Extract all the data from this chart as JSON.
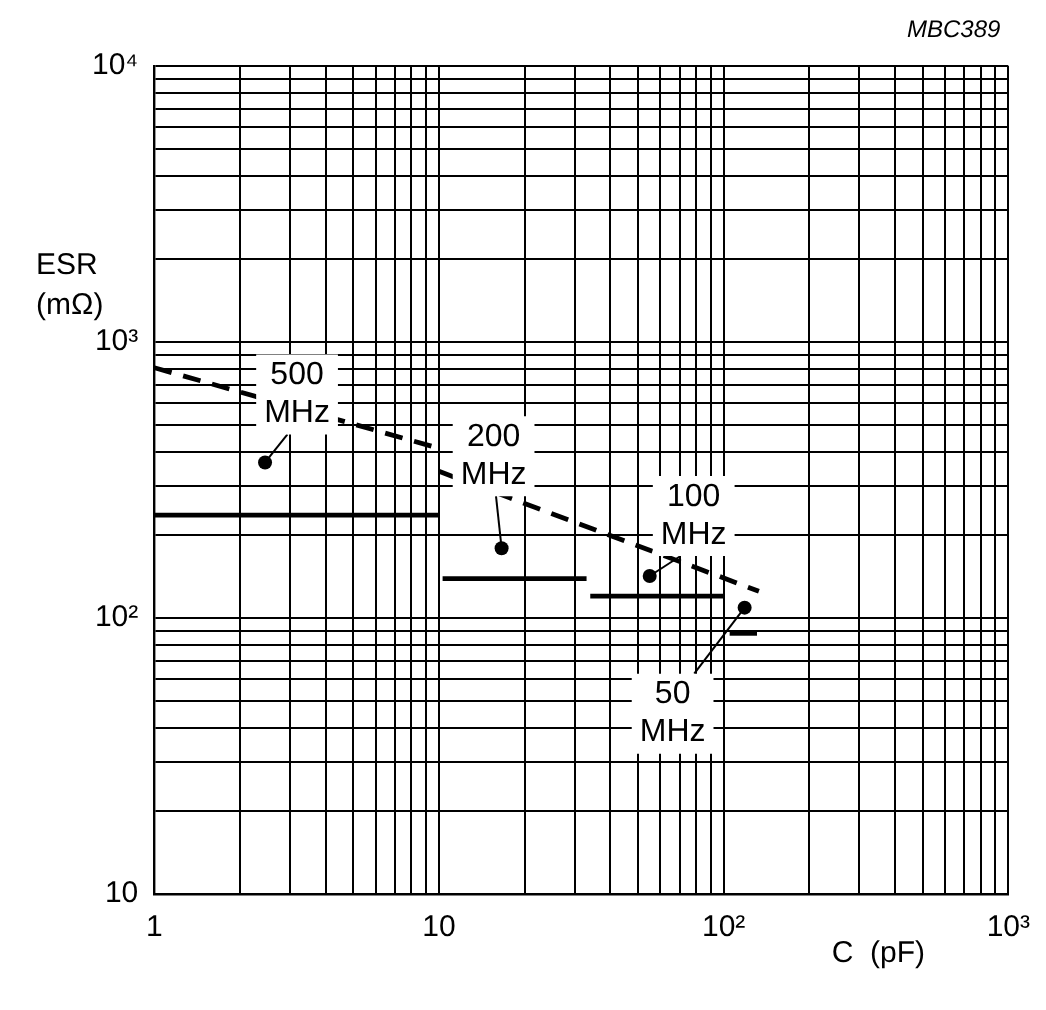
{
  "chart_data": {
    "type": "line",
    "xlabel": "C  (pF)",
    "ylabel": "ESR\n(mΩ)",
    "log": "xy",
    "grid": true,
    "marker": "none",
    "xlim": [
      1,
      1000
    ],
    "ylim": [
      10,
      10000
    ],
    "xticks": [
      {
        "value": 1,
        "label": "1"
      },
      {
        "value": 2,
        "label": null
      },
      {
        "value": 3,
        "label": null
      },
      {
        "value": 4,
        "label": null
      },
      {
        "value": 5,
        "label": null
      },
      {
        "value": 6,
        "label": null
      },
      {
        "value": 7,
        "label": null
      },
      {
        "value": 8,
        "label": null
      },
      {
        "value": 9,
        "label": null
      },
      {
        "value": 10,
        "label": "10"
      },
      {
        "value": 20,
        "label": null
      },
      {
        "value": 30,
        "label": null
      },
      {
        "value": 40,
        "label": null
      },
      {
        "value": 50,
        "label": null
      },
      {
        "value": 60,
        "label": null
      },
      {
        "value": 70,
        "label": null
      },
      {
        "value": 80,
        "label": null
      },
      {
        "value": 90,
        "label": null
      },
      {
        "value": 100,
        "label": "10²"
      },
      {
        "value": 200,
        "label": null
      },
      {
        "value": 300,
        "label": null
      },
      {
        "value": 400,
        "label": null
      },
      {
        "value": 500,
        "label": null
      },
      {
        "value": 600,
        "label": null
      },
      {
        "value": 700,
        "label": null
      },
      {
        "value": 800,
        "label": null
      },
      {
        "value": 900,
        "label": null
      },
      {
        "value": 1000,
        "label": "10³"
      }
    ],
    "yticks": [
      {
        "value": 10,
        "label": "10"
      },
      {
        "value": 20,
        "label": null
      },
      {
        "value": 30,
        "label": null
      },
      {
        "value": 40,
        "label": null
      },
      {
        "value": 50,
        "label": null
      },
      {
        "value": 60,
        "label": null
      },
      {
        "value": 70,
        "label": null
      },
      {
        "value": 80,
        "label": null
      },
      {
        "value": 90,
        "label": null
      },
      {
        "value": 100,
        "label": "10²"
      },
      {
        "value": 200,
        "label": null
      },
      {
        "value": 300,
        "label": null
      },
      {
        "value": 400,
        "label": null
      },
      {
        "value": 500,
        "label": null
      },
      {
        "value": 600,
        "label": null
      },
      {
        "value": 700,
        "label": null
      },
      {
        "value": 800,
        "label": null
      },
      {
        "value": 900,
        "label": null
      },
      {
        "value": 1000,
        "label": "10³"
      },
      {
        "value": 2000,
        "label": null
      },
      {
        "value": 3000,
        "label": null
      },
      {
        "value": 4000,
        "label": null
      },
      {
        "value": 5000,
        "label": null
      },
      {
        "value": 6000,
        "label": null
      },
      {
        "value": 7000,
        "label": null
      },
      {
        "value": 8000,
        "label": null
      },
      {
        "value": 9000,
        "label": null
      },
      {
        "value": 10000,
        "label": "10⁴"
      }
    ],
    "series": [
      {
        "color": "#000000",
        "line_style": "dashed",
        "x": [
          1,
          10
        ],
        "values": [
          807,
          412
        ]
      },
      {
        "color": "#000000",
        "line_style": "dashed",
        "x": [
          10,
          133
        ],
        "values": [
          340,
          125
        ]
      },
      {
        "color": "#000000",
        "line_style": "solid",
        "x": [
          1,
          10
        ],
        "values": [
          236,
          236
        ]
      },
      {
        "color": "#000000",
        "line_style": "solid",
        "x": [
          10.3,
          33
        ],
        "values": [
          139,
          139
        ]
      },
      {
        "color": "#000000",
        "line_style": "solid",
        "x": [
          34,
          100
        ],
        "values": [
          120,
          120
        ]
      },
      {
        "color": "#000000",
        "line_style": "solid",
        "x": [
          105,
          131
        ],
        "values": [
          88,
          88
        ]
      }
    ],
    "annotations": [
      "MBC389",
      {
        "text": "500\nMHz",
        "x": 2.45,
        "y": 366
      },
      {
        "text": "200\nMHz",
        "x": 16.6,
        "y": 179
      },
      {
        "text": "100\nMHz",
        "x": 55,
        "y": 142
      },
      {
        "text": "50\nMHz",
        "x": 118.5,
        "y": 109
      }
    ]
  }
}
